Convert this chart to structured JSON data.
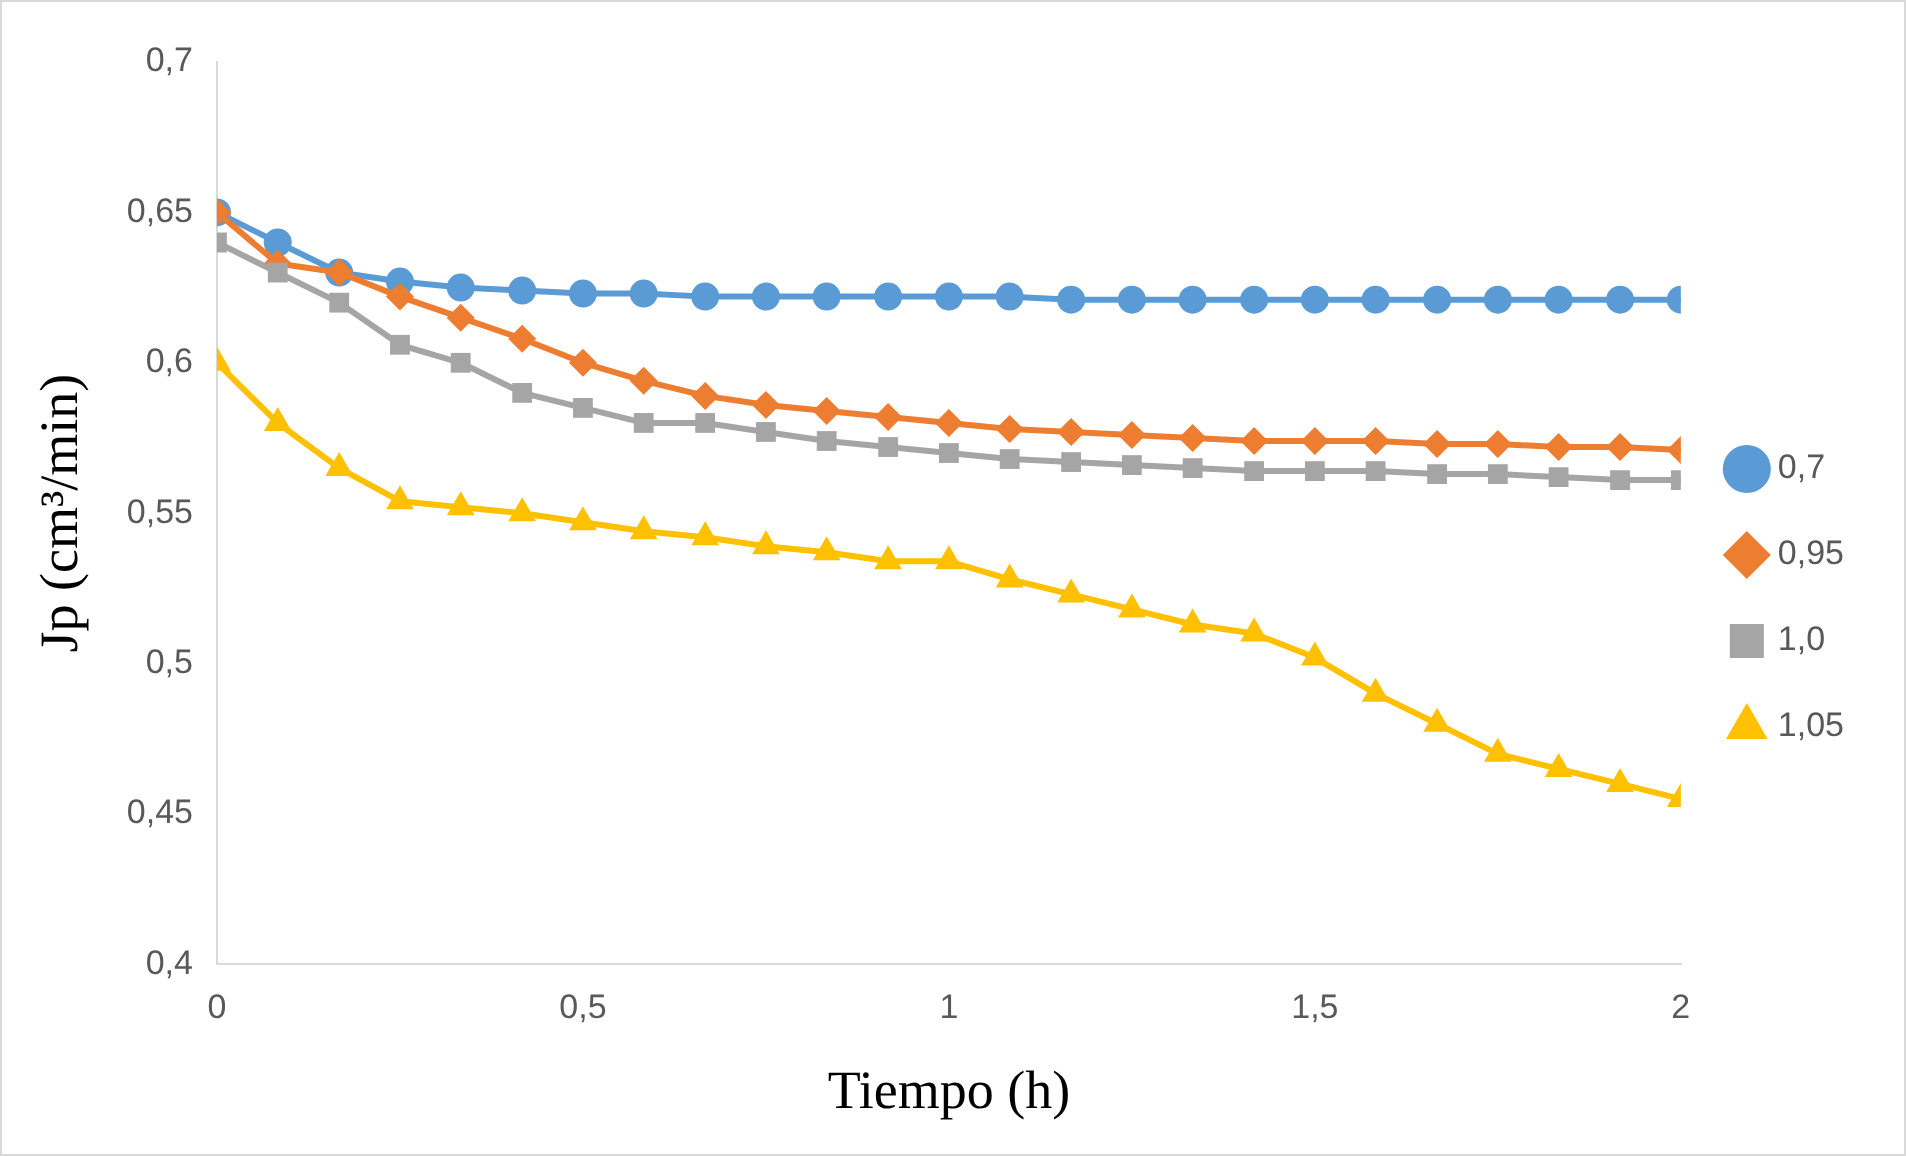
{
  "chart_data": {
    "type": "line",
    "xlabel": "Tiempo (h)",
    "ylabel": "Jp (cm³/min)",
    "x": [
      0,
      0.083,
      0.167,
      0.25,
      0.333,
      0.417,
      0.5,
      0.583,
      0.667,
      0.75,
      0.833,
      0.917,
      1,
      1.083,
      1.167,
      1.25,
      1.333,
      1.417,
      1.5,
      1.583,
      1.667,
      1.75,
      1.833,
      1.917,
      2
    ],
    "xlim": [
      0,
      2
    ],
    "xticks": [
      0,
      {
        "value": 0.5,
        "label": "0,5"
      },
      1,
      {
        "value": 1.5,
        "label": "1,5"
      },
      2
    ],
    "ylim": [
      0.4,
      0.7
    ],
    "yticks": [
      {
        "value": 0.4,
        "label": "0,4"
      },
      {
        "value": 0.45,
        "label": "0,45"
      },
      {
        "value": 0.5,
        "label": "0,5"
      },
      {
        "value": 0.55,
        "label": "0,55"
      },
      {
        "value": 0.6,
        "label": "0,6"
      },
      {
        "value": 0.65,
        "label": "0,65"
      },
      {
        "value": 0.7,
        "label": "0,7"
      }
    ],
    "grid": false,
    "legend": "right",
    "line_style": "solid",
    "series": [
      {
        "name": "0,7",
        "color": "#5b9bd5",
        "marker": "circle",
        "values": [
          0.65,
          0.64,
          0.63,
          0.627,
          0.625,
          0.624,
          0.623,
          0.623,
          0.622,
          0.622,
          0.622,
          0.622,
          0.622,
          0.622,
          0.621,
          0.621,
          0.621,
          0.621,
          0.621,
          0.621,
          0.621,
          0.621,
          0.621,
          0.621,
          0.621
        ]
      },
      {
        "name": "0,95",
        "color": "#ed7d31",
        "marker": "diamond",
        "values": [
          0.65,
          0.633,
          0.63,
          0.622,
          0.615,
          0.608,
          0.6,
          0.594,
          0.589,
          0.586,
          0.584,
          0.582,
          0.58,
          0.578,
          0.577,
          0.576,
          0.575,
          0.574,
          0.574,
          0.574,
          0.573,
          0.573,
          0.572,
          0.572,
          0.571
        ]
      },
      {
        "name": "1,0",
        "color": "#a5a5a5",
        "marker": "square",
        "values": [
          0.64,
          0.63,
          0.62,
          0.606,
          0.6,
          0.59,
          0.585,
          0.58,
          0.58,
          0.577,
          0.574,
          0.572,
          0.57,
          0.568,
          0.567,
          0.566,
          0.565,
          0.564,
          0.564,
          0.564,
          0.563,
          0.563,
          0.562,
          0.561,
          0.561
        ]
      },
      {
        "name": "1,05",
        "color": "#ffc000",
        "marker": "triangle",
        "values": [
          0.6,
          0.58,
          0.565,
          0.554,
          0.552,
          0.55,
          0.547,
          0.544,
          0.542,
          0.539,
          0.537,
          0.534,
          0.534,
          0.528,
          0.523,
          0.518,
          0.513,
          0.51,
          0.502,
          0.49,
          0.48,
          0.47,
          0.465,
          0.46,
          0.455
        ]
      }
    ]
  }
}
